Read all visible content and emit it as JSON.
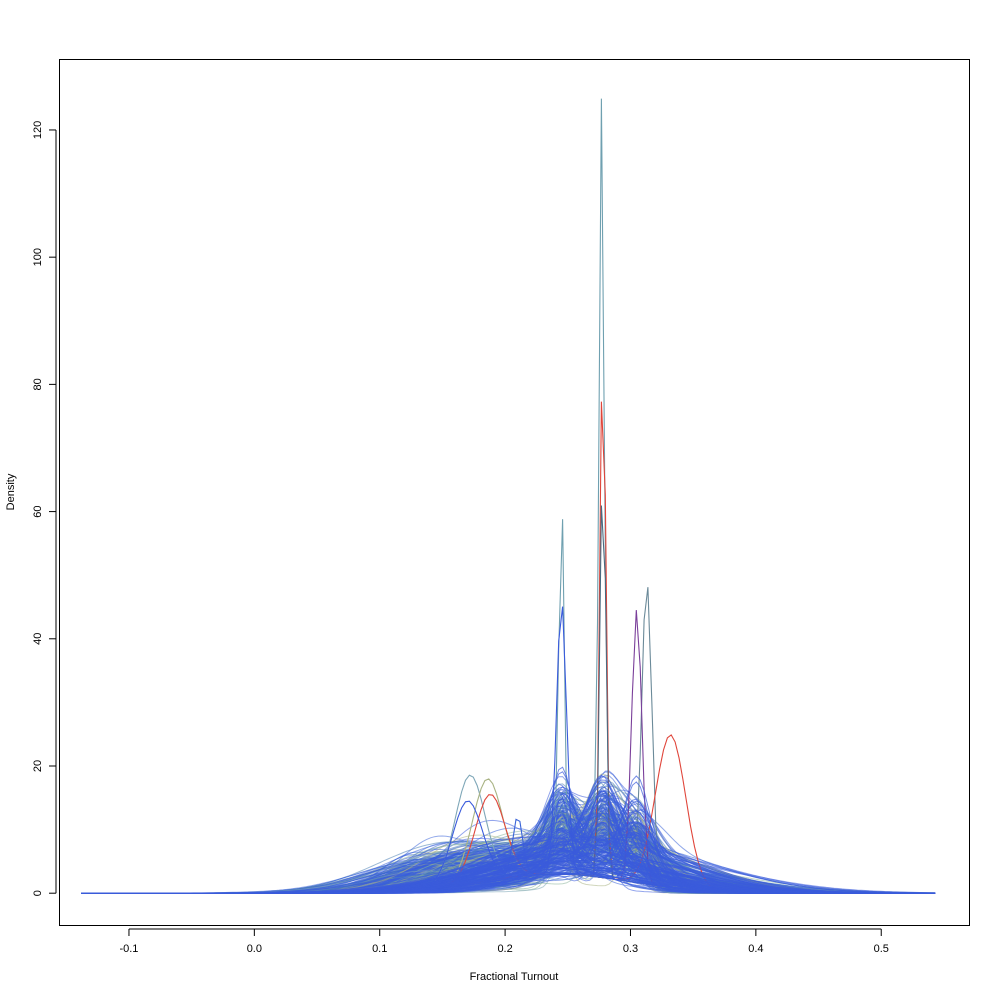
{
  "chart_data": {
    "type": "line",
    "title": "",
    "xlabel": "Fractional Turnout",
    "ylabel": "Density",
    "xlim": [
      -0.155,
      0.57
    ],
    "ylim": [
      -5,
      131
    ],
    "xticks": [
      -0.1,
      0.0,
      0.1,
      0.2,
      0.3,
      0.4,
      0.5
    ],
    "xtick_labels": [
      "-0.1",
      "0.0",
      "0.1",
      "0.2",
      "0.3",
      "0.4",
      "0.5"
    ],
    "yticks": [
      0,
      20,
      40,
      60,
      80,
      100,
      120
    ],
    "ytick_labels": [
      "0",
      "20",
      "40",
      "60",
      "80",
      "100",
      "120"
    ],
    "grid": false,
    "legend": "none",
    "x_range_of_curves": [
      -0.138,
      0.543
    ],
    "num_curves_approx": 1000,
    "colors": [
      "#7fa7b8",
      "#8ab59a",
      "#a9b384",
      "#4a7fb5",
      "#3a64d8",
      "#3a5bdc",
      "#e0453a",
      "#7a3f9a",
      "#6b8a99"
    ],
    "notable_peaks": [
      {
        "x": 0.277,
        "y": 126,
        "color": "#6fa0b0"
      },
      {
        "x": 0.278,
        "y": 90,
        "color": "#e0453a"
      },
      {
        "x": 0.278,
        "y": 71,
        "color": "#4a6a80"
      },
      {
        "x": 0.245,
        "y": 63,
        "color": "#6fa0b0"
      },
      {
        "x": 0.245,
        "y": 46,
        "color": "#3a5bdc"
      },
      {
        "x": 0.313,
        "y": 51,
        "color": "#6b8a99"
      },
      {
        "x": 0.305,
        "y": 46,
        "color": "#7a3f9a"
      },
      {
        "x": 0.332,
        "y": 27,
        "color": "#e0453a"
      },
      {
        "x": 0.172,
        "y": 20,
        "color": "#7fa7b8"
      },
      {
        "x": 0.186,
        "y": 19,
        "color": "#a9b384"
      },
      {
        "x": 0.188,
        "y": 16.5,
        "color": "#e0453a"
      },
      {
        "x": 0.17,
        "y": 16,
        "color": "#3a5bdc"
      },
      {
        "x": 0.21,
        "y": 12.5,
        "color": "#3a64d8"
      }
    ]
  }
}
